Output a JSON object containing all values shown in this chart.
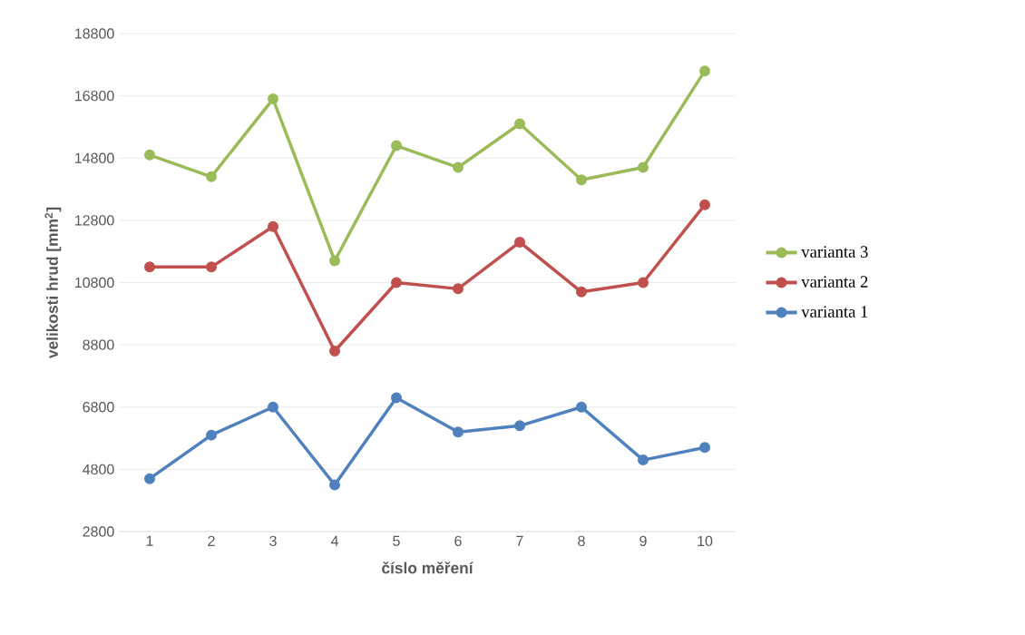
{
  "chart_data": {
    "type": "line",
    "xlabel": "číslo měření",
    "ylabel": "velikosti hrud [mm$^{2}$]",
    "categories": [
      "1",
      "2",
      "3",
      "4",
      "5",
      "6",
      "7",
      "8",
      "9",
      "10"
    ],
    "series": [
      {
        "name": "varianta 1",
        "color": "#4f81bd",
        "values": [
          4500,
          5900,
          6800,
          4300,
          7100,
          6000,
          6200,
          6800,
          5100,
          5500
        ]
      },
      {
        "name": "varianta 2",
        "color": "#c0504d",
        "values": [
          11300,
          11300,
          12600,
          8600,
          10800,
          10600,
          12100,
          10500,
          10800,
          13300
        ]
      },
      {
        "name": "varianta 3",
        "color": "#9bbb59",
        "values": [
          14900,
          14200,
          16700,
          11500,
          15200,
          14500,
          15900,
          14100,
          14500,
          17600
        ]
      }
    ],
    "ylim": [
      2800,
      18800
    ],
    "yticks": [
      2800,
      4800,
      6800,
      8800,
      10800,
      12800,
      14800,
      16800,
      18800
    ],
    "grid": "y",
    "legend": "right",
    "marker": "circle",
    "line_style": "solid"
  }
}
